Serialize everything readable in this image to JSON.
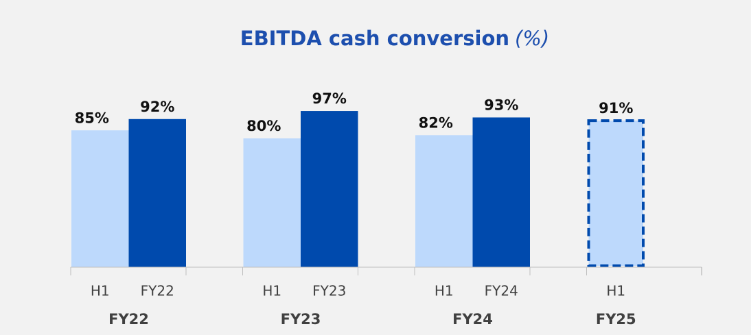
{
  "chart_data": {
    "type": "grouped-bar",
    "title": "EBITDA cash conversion",
    "unit": "(%)",
    "ylim": [
      0,
      100
    ],
    "colors": [
      "#bdd9fc",
      "#004aad"
    ],
    "groups": [
      {
        "name": "FY22",
        "categories": [
          "H1",
          "FY22"
        ],
        "values": [
          85,
          92
        ],
        "value_labels": [
          "85%",
          "92%"
        ]
      },
      {
        "name": "FY23",
        "categories": [
          "H1",
          "FY23"
        ],
        "values": [
          80,
          97
        ],
        "value_labels": [
          "80%",
          "97%"
        ]
      },
      {
        "name": "FY24",
        "categories": [
          "H1",
          "FY24"
        ],
        "values": [
          82,
          93
        ],
        "value_labels": [
          "82%",
          "93%"
        ]
      },
      {
        "name": "FY25",
        "categories": [
          "H1"
        ],
        "values": [
          91
        ],
        "value_labels": [
          "91%"
        ],
        "dashed": true
      }
    ]
  }
}
